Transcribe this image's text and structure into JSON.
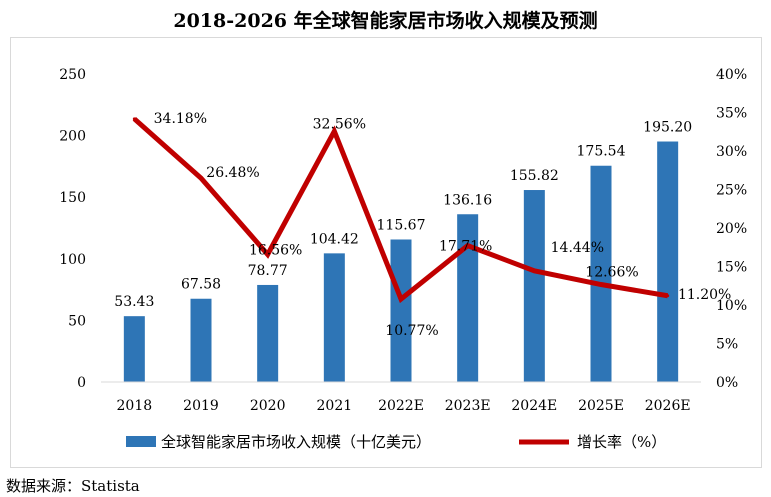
{
  "chart_data": {
    "type": "bar",
    "title": "2018-2026 年全球智能家居市场收入规模及预测",
    "categories": [
      "2018",
      "2019",
      "2020",
      "2021",
      "2022E",
      "2023E",
      "2024E",
      "2025E",
      "2026E"
    ],
    "series": [
      {
        "name": "全球智能家居市场收入规模（十亿美元）",
        "type": "bar",
        "axis": "left",
        "values": [
          53.43,
          67.58,
          78.77,
          104.42,
          115.67,
          136.16,
          155.82,
          175.54,
          195.2
        ],
        "labels": [
          "53.43",
          "67.58",
          "78.77",
          "104.42",
          "115.67",
          "136.16",
          "155.82",
          "175.54",
          "195.20"
        ],
        "color": "#2e75b6"
      },
      {
        "name": "增长率（%）",
        "type": "line",
        "axis": "right",
        "values": [
          34.18,
          26.48,
          16.56,
          32.56,
          10.77,
          17.71,
          14.44,
          12.66,
          11.2
        ],
        "labels": [
          "34.18%",
          "26.48%",
          "16.56%",
          "32.56%",
          "10.77%",
          "17.71%",
          "14.44%",
          "12.66%",
          "11.20%"
        ],
        "color": "#c00000"
      }
    ],
    "ylim": [
      0,
      250
    ],
    "y_ticks": [
      "0",
      "50",
      "100",
      "150",
      "200",
      "250"
    ],
    "y2lim": [
      0,
      40
    ],
    "y2_ticks": [
      "0%",
      "5%",
      "10%",
      "15%",
      "20%",
      "25%",
      "30%",
      "35%",
      "40%"
    ],
    "legend": "bottom",
    "grid": false
  },
  "source": "数据来源：Statista"
}
